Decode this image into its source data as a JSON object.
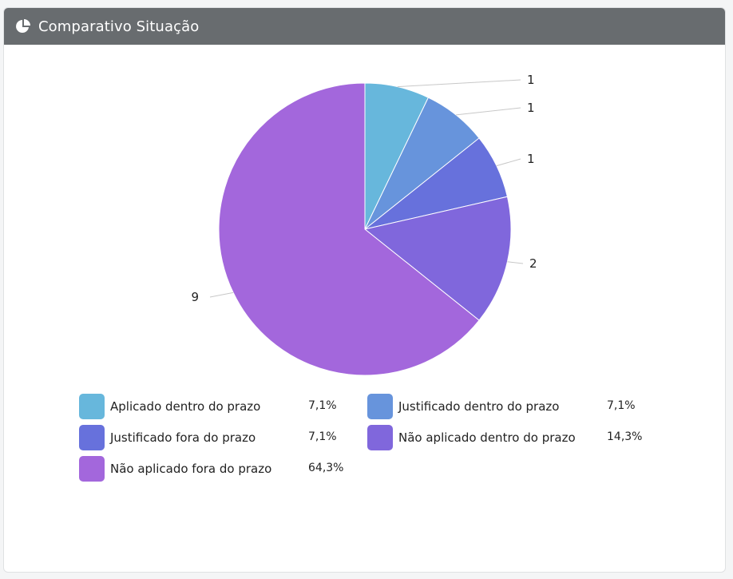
{
  "header": {
    "title": "Comparativo Situação",
    "icon": "pie-chart-icon"
  },
  "chart_data": {
    "type": "pie",
    "title": "Comparativo Situação",
    "start_angle_deg": 0,
    "direction": "clockwise",
    "legend_position": "bottom",
    "slices": [
      {
        "label": "Aplicado dentro do prazo",
        "value": 1,
        "percent": "7,1%",
        "color": "#67b7dc"
      },
      {
        "label": "Justificado dentro do prazo",
        "value": 1,
        "percent": "7,1%",
        "color": "#6794dc"
      },
      {
        "label": "Justificado fora do prazo",
        "value": 1,
        "percent": "7,1%",
        "color": "#6771dc"
      },
      {
        "label": "Não aplicado dentro do prazo",
        "value": 2,
        "percent": "14,3%",
        "color": "#8067dc"
      },
      {
        "label": "Não aplicado fora do prazo",
        "value": 9,
        "percent": "64,3%",
        "color": "#a367dc"
      }
    ]
  }
}
